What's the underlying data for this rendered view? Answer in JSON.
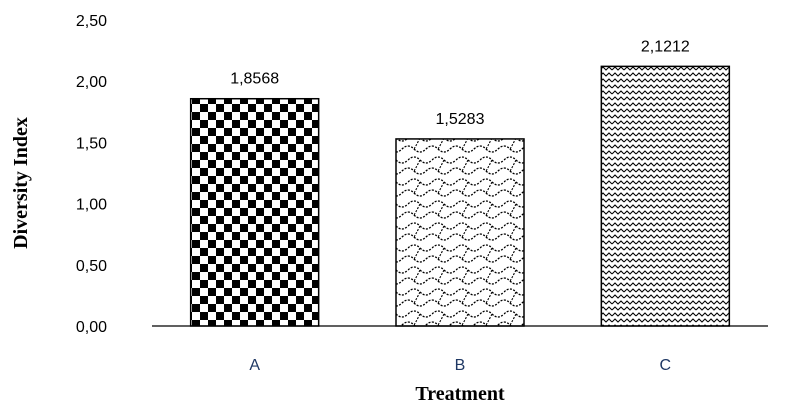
{
  "chart_data": {
    "type": "bar",
    "categories": [
      "A",
      "B",
      "C"
    ],
    "values": [
      1.8568,
      1.5283,
      2.1212
    ],
    "value_labels": [
      "1,8568",
      "1,5283",
      "2,1212"
    ],
    "xlabel": "Treatment",
    "ylabel": "Diversity Index",
    "ylim": [
      0,
      2.5
    ],
    "yticks": [
      0,
      0.5,
      1.0,
      1.5,
      2.0,
      2.5
    ],
    "ytick_labels": [
      "0,00",
      "0,50",
      "1,00",
      "1,50",
      "2,00",
      "2,50"
    ],
    "grid": false,
    "legend": "none",
    "bar_fill_patterns": [
      "checkerboard-pattern",
      "scale-wave-pattern",
      "zigzag-wave-pattern"
    ],
    "colors": {
      "bar_pattern": "#000000",
      "bar_background": "#ffffff",
      "category_label": "#1f3864"
    }
  }
}
